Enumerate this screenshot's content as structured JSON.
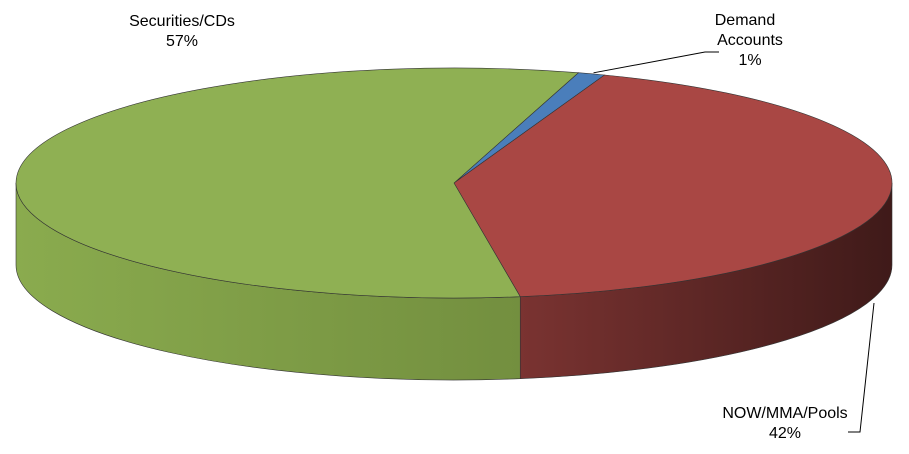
{
  "chart_data": {
    "type": "pie",
    "style": "3d",
    "title": "",
    "slices": [
      {
        "label": "Demand Accounts",
        "value": 1,
        "pct_label": "1%",
        "color": "#4a7ebb"
      },
      {
        "label": "NOW/MMA/Pools",
        "value": 42,
        "pct_label": "42%",
        "color": "#a94744"
      },
      {
        "label": "Securities/CDs",
        "value": 57,
        "pct_label": "57%",
        "color": "#8fb053"
      }
    ]
  }
}
